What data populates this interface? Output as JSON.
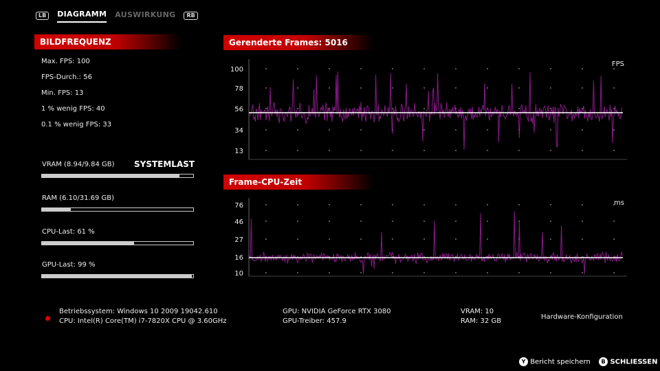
{
  "tabs": {
    "lb": "LB",
    "rb": "RB",
    "items": [
      {
        "label": "DIAGRAMM"
      },
      {
        "label": "AUSWIRKUNG"
      }
    ]
  },
  "framerate": {
    "header": "BILDFREQUENZ",
    "stats": [
      {
        "label": "Max. FPS: 100"
      },
      {
        "label": "FPS-Durch.: 56"
      },
      {
        "label": "Min. FPS: 13"
      },
      {
        "label": "1 % wenig FPS: 40"
      },
      {
        "label": "0.1 % wenig FPS: 33"
      }
    ]
  },
  "system": {
    "title": "SYSTEMLAST",
    "bars": [
      {
        "label": "VRAM (8.94/9.84 GB)",
        "value": 0.9085
      },
      {
        "label": "RAM (6.10/31.69 GB)",
        "value": 0.1925
      },
      {
        "label": "CPU-Last: 61 %",
        "value": 0.61
      },
      {
        "label": "GPU-Last: 99 %",
        "value": 0.99
      }
    ]
  },
  "chart_data": [
    {
      "type": "line",
      "title": "Gerenderte Frames: 5016",
      "unit": "FPS",
      "yticks": [
        100,
        78,
        56,
        34,
        13
      ],
      "ylim": [
        13,
        100
      ],
      "average": 56,
      "max": 100,
      "min": 13,
      "color": "#a020a0",
      "avg_color": "#ffffff"
    },
    {
      "type": "line",
      "title": "Frame-CPU-Zeit",
      "unit": "ms",
      "yticks": [
        76,
        46,
        27,
        16,
        10
      ],
      "scale": "log",
      "average": 16,
      "max": 76,
      "min": 10,
      "color": "#a020a0",
      "avg_color": "#ffffff"
    }
  ],
  "footer": {
    "os": "Betriebssystem: Windows 10 2009 19042.610",
    "cpu": "CPU: Intel(R) Core(TM) i7-7820X CPU @ 3.60GHz",
    "gpu": "GPU: NVIDIA GeForce RTX 3080",
    "driver": "GPU-Treiber: 457.9",
    "vram": "VRAM: 10",
    "ram": "RAM: 32 GB",
    "hw": "Hardware-Konfiguration"
  },
  "actions": {
    "save_icon": "Y",
    "save": "Bericht speichern",
    "close_icon": "B",
    "close": "SCHLIESSEN"
  },
  "colors": {
    "accent": "#d00000",
    "dot": "#e00000"
  }
}
